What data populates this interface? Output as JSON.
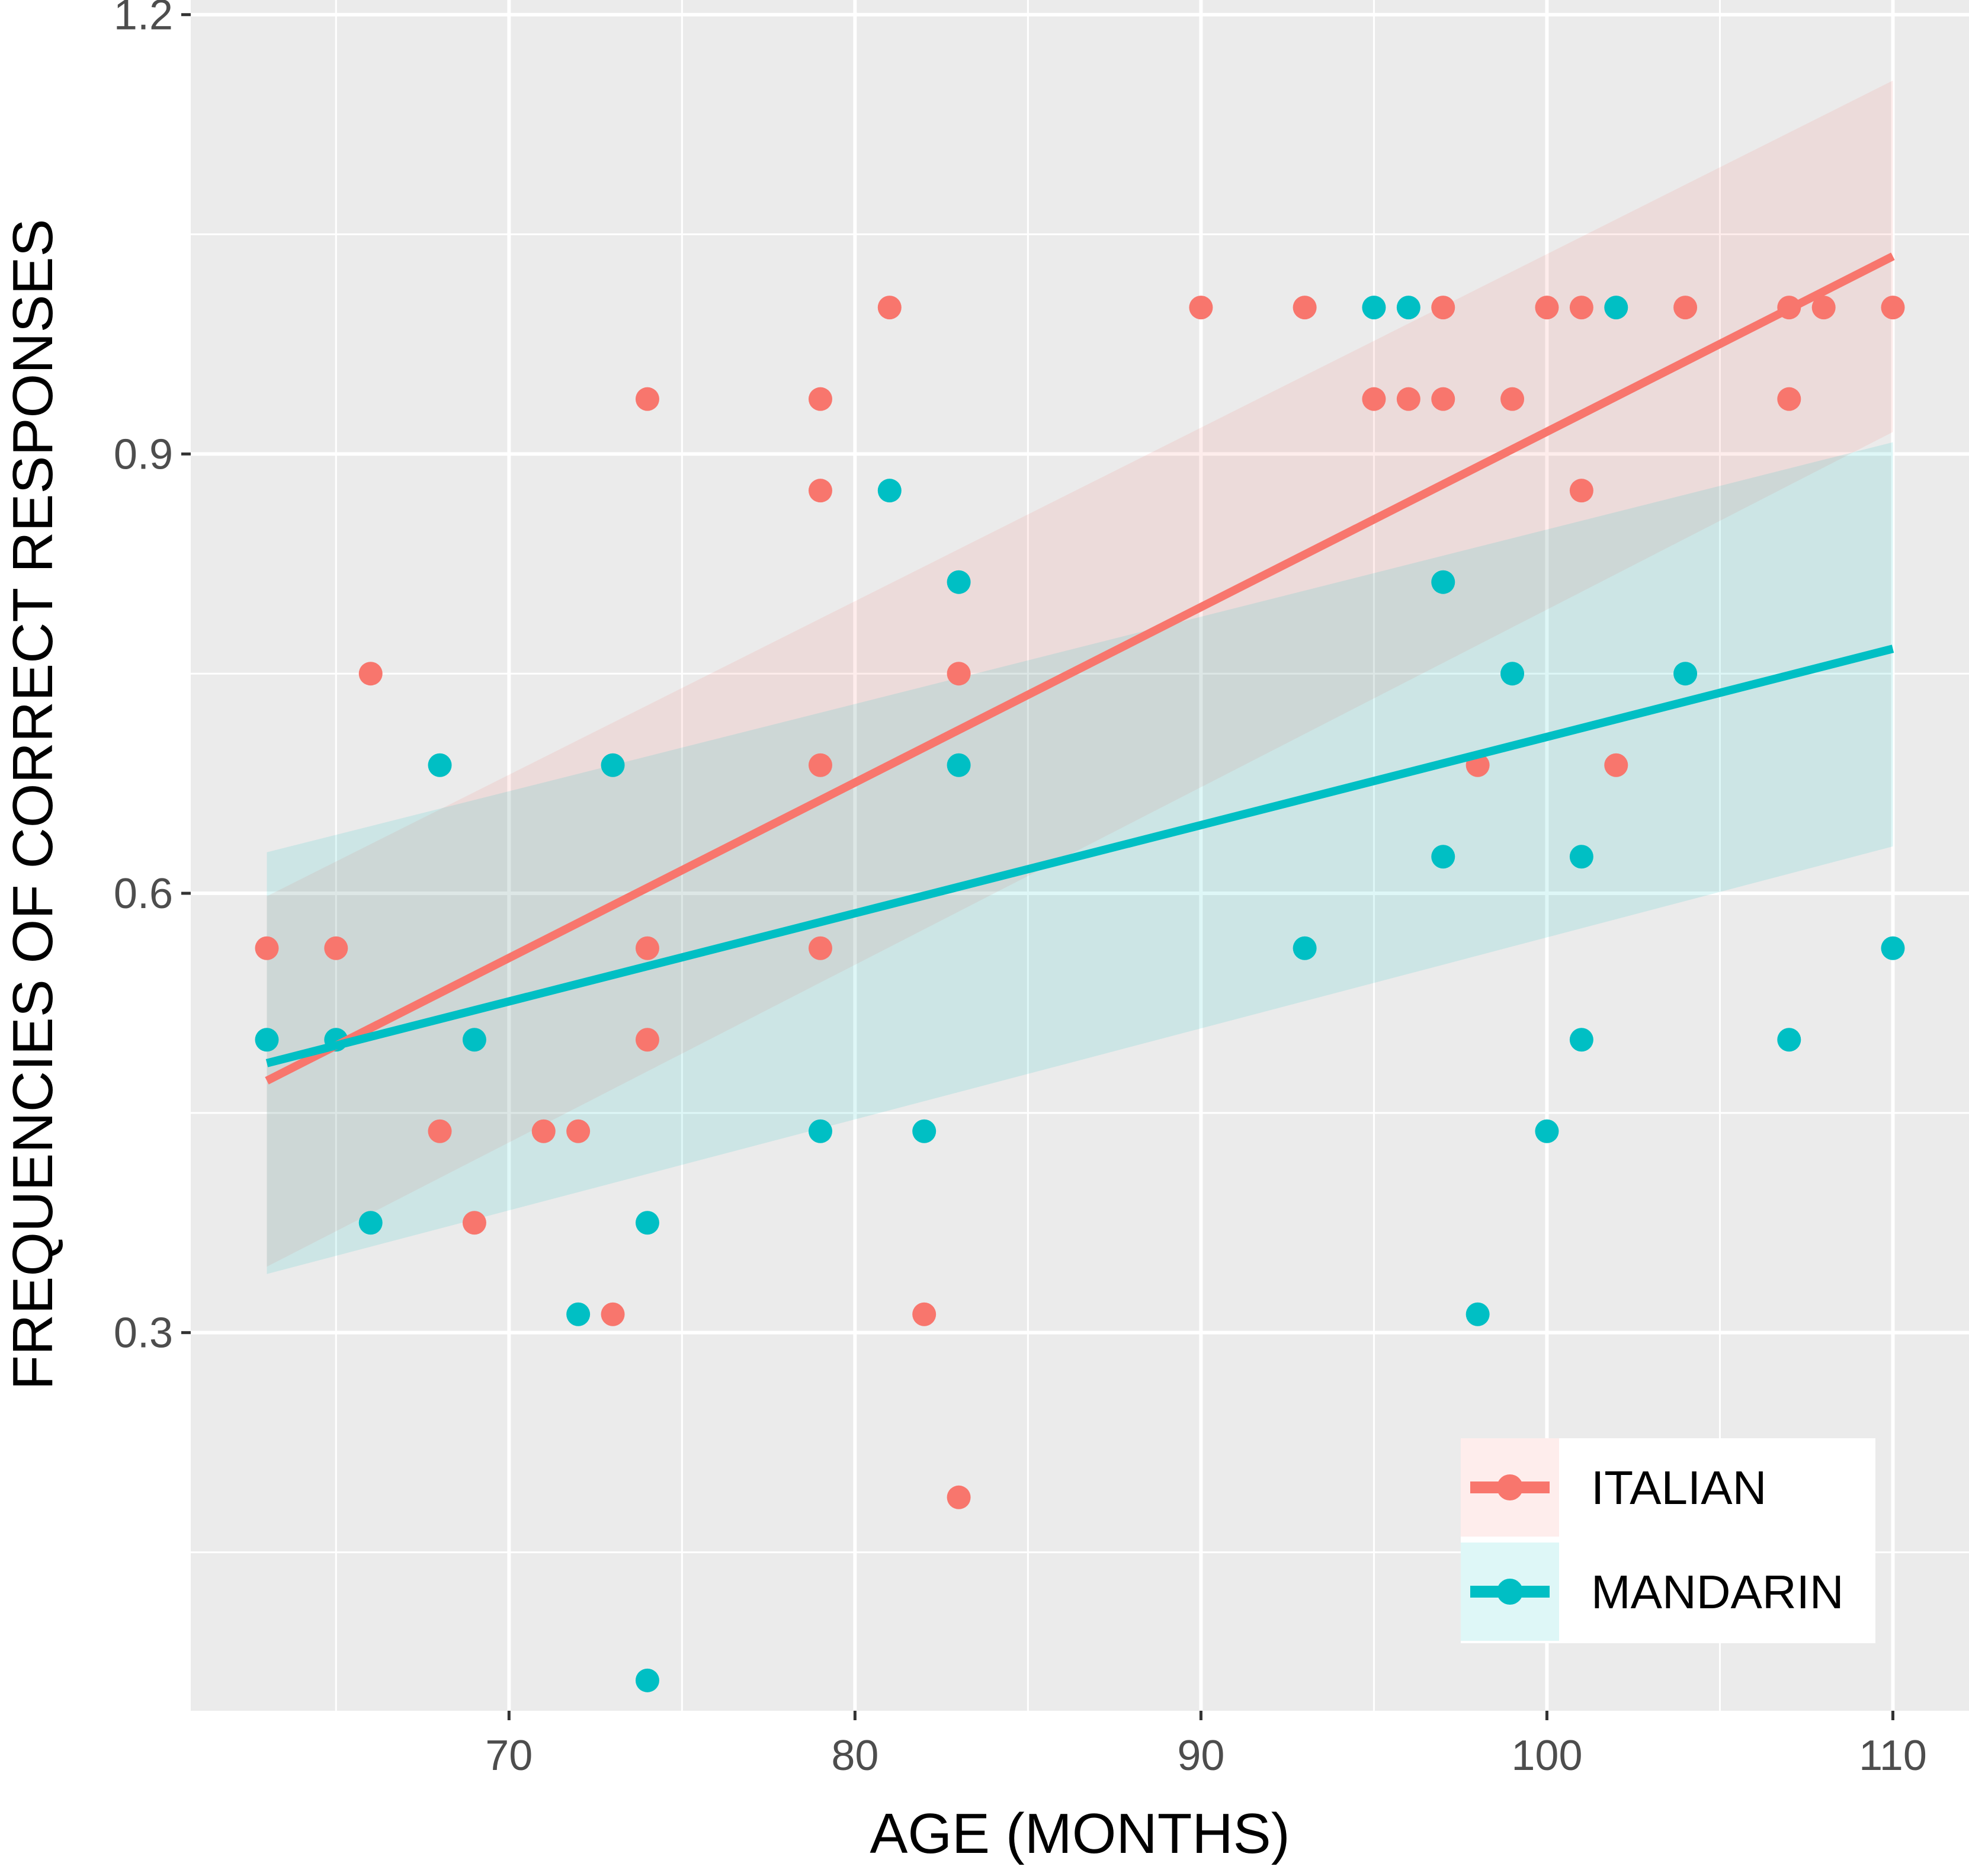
{
  "chart_data": {
    "type": "scatter",
    "title": "",
    "xlabel": "AGE (MONTHS)",
    "ylabel": "FREQUENCIES OF CORRECT RESPONSES",
    "xlim": [
      60.8,
      112.2
    ],
    "ylim": [
      0.0418,
      1.21
    ],
    "x_ticks": [
      70,
      80,
      90,
      100,
      110
    ],
    "y_ticks": [
      0.3,
      0.6,
      0.9,
      1.2
    ],
    "x_tick_labels": [
      "70",
      "80",
      "90",
      "100",
      "110"
    ],
    "y_tick_labels": [
      "0.3",
      "0.6",
      "0.9",
      "1.2"
    ],
    "grid": true,
    "legend_position": "bottom-right",
    "series": [
      {
        "name": "ITALIAN",
        "color": "#F8766D",
        "points": [
          [
            63,
            0.5625
          ],
          [
            65,
            0.5625
          ],
          [
            66,
            0.75
          ],
          [
            68,
            0.4375
          ],
          [
            69,
            0.375
          ],
          [
            71,
            0.4375
          ],
          [
            72,
            0.4375
          ],
          [
            73,
            0.3125
          ],
          [
            74,
            0.9375
          ],
          [
            74,
            0.5625
          ],
          [
            74,
            0.5
          ],
          [
            79,
            0.9375
          ],
          [
            79,
            0.875
          ],
          [
            79,
            0.6875
          ],
          [
            79,
            0.5625
          ],
          [
            81,
            1.0
          ],
          [
            82,
            0.3125
          ],
          [
            83,
            0.75
          ],
          [
            83,
            0.1875
          ],
          [
            90,
            1.0
          ],
          [
            93,
            1.0
          ],
          [
            95,
            0.9375
          ],
          [
            96,
            0.9375
          ],
          [
            97,
            1.0
          ],
          [
            97,
            0.9375
          ],
          [
            98,
            0.6875
          ],
          [
            99,
            0.9375
          ],
          [
            100,
            1.0
          ],
          [
            101,
            1.0
          ],
          [
            101,
            0.875
          ],
          [
            102,
            0.6875
          ],
          [
            104,
            1.0
          ],
          [
            107,
            1.0
          ],
          [
            107,
            0.9375
          ],
          [
            108,
            1.0
          ],
          [
            110,
            1.0
          ]
        ],
        "fit": {
          "x": [
            63,
            110
          ],
          "y": [
            0.472,
            1.035
          ]
        },
        "band": {
          "x": [
            63,
            110
          ],
          "lower": [
            0.345,
            0.915
          ],
          "upper": [
            0.598,
            1.155
          ]
        }
      },
      {
        "name": "MANDARIN",
        "color": "#00BFC4",
        "points": [
          [
            63,
            0.5
          ],
          [
            65,
            0.5
          ],
          [
            66,
            0.375
          ],
          [
            68,
            0.6875
          ],
          [
            69,
            0.5
          ],
          [
            72,
            0.3125
          ],
          [
            73,
            0.6875
          ],
          [
            74,
            0.375
          ],
          [
            74,
            0.0625
          ],
          [
            79,
            0.4375
          ],
          [
            81,
            0.875
          ],
          [
            82,
            0.4375
          ],
          [
            83,
            0.8125
          ],
          [
            83,
            0.6875
          ],
          [
            93,
            0.5625
          ],
          [
            95,
            1.0
          ],
          [
            96,
            1.0
          ],
          [
            97,
            0.8125
          ],
          [
            97,
            0.625
          ],
          [
            98,
            0.3125
          ],
          [
            99,
            0.75
          ],
          [
            100,
            0.4375
          ],
          [
            101,
            0.625
          ],
          [
            101,
            0.5
          ],
          [
            102,
            1.0
          ],
          [
            104,
            0.75
          ],
          [
            107,
            0.5
          ],
          [
            110,
            0.5625
          ]
        ],
        "fit": {
          "x": [
            63,
            110
          ],
          "y": [
            0.484,
            0.767
          ]
        },
        "band": {
          "x": [
            63,
            110
          ],
          "lower": [
            0.34,
            0.632
          ],
          "upper": [
            0.628,
            0.908
          ]
        }
      }
    ]
  }
}
